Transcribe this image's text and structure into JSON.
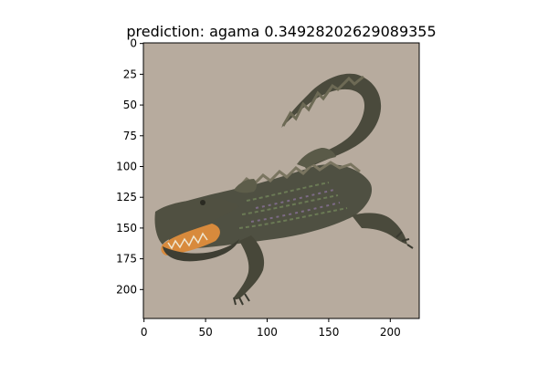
{
  "figure": {
    "title": "prediction: agama 0.34928202629089355",
    "background": "#ffffff",
    "image_background": "#b7ab9e",
    "subject": "crocodile-photo",
    "colors": {
      "body_dark": "#3a3a30",
      "body_mid": "#5a5a48",
      "scale_green": "#6b7a55",
      "scale_purple": "#7c6a86",
      "mouth": "#d88a3c",
      "teeth": "#efe6d0"
    }
  },
  "axes": {
    "x_ticks": [
      "0",
      "50",
      "100",
      "150",
      "200"
    ],
    "y_ticks": [
      "0",
      "25",
      "50",
      "75",
      "100",
      "125",
      "150",
      "175",
      "200"
    ]
  }
}
